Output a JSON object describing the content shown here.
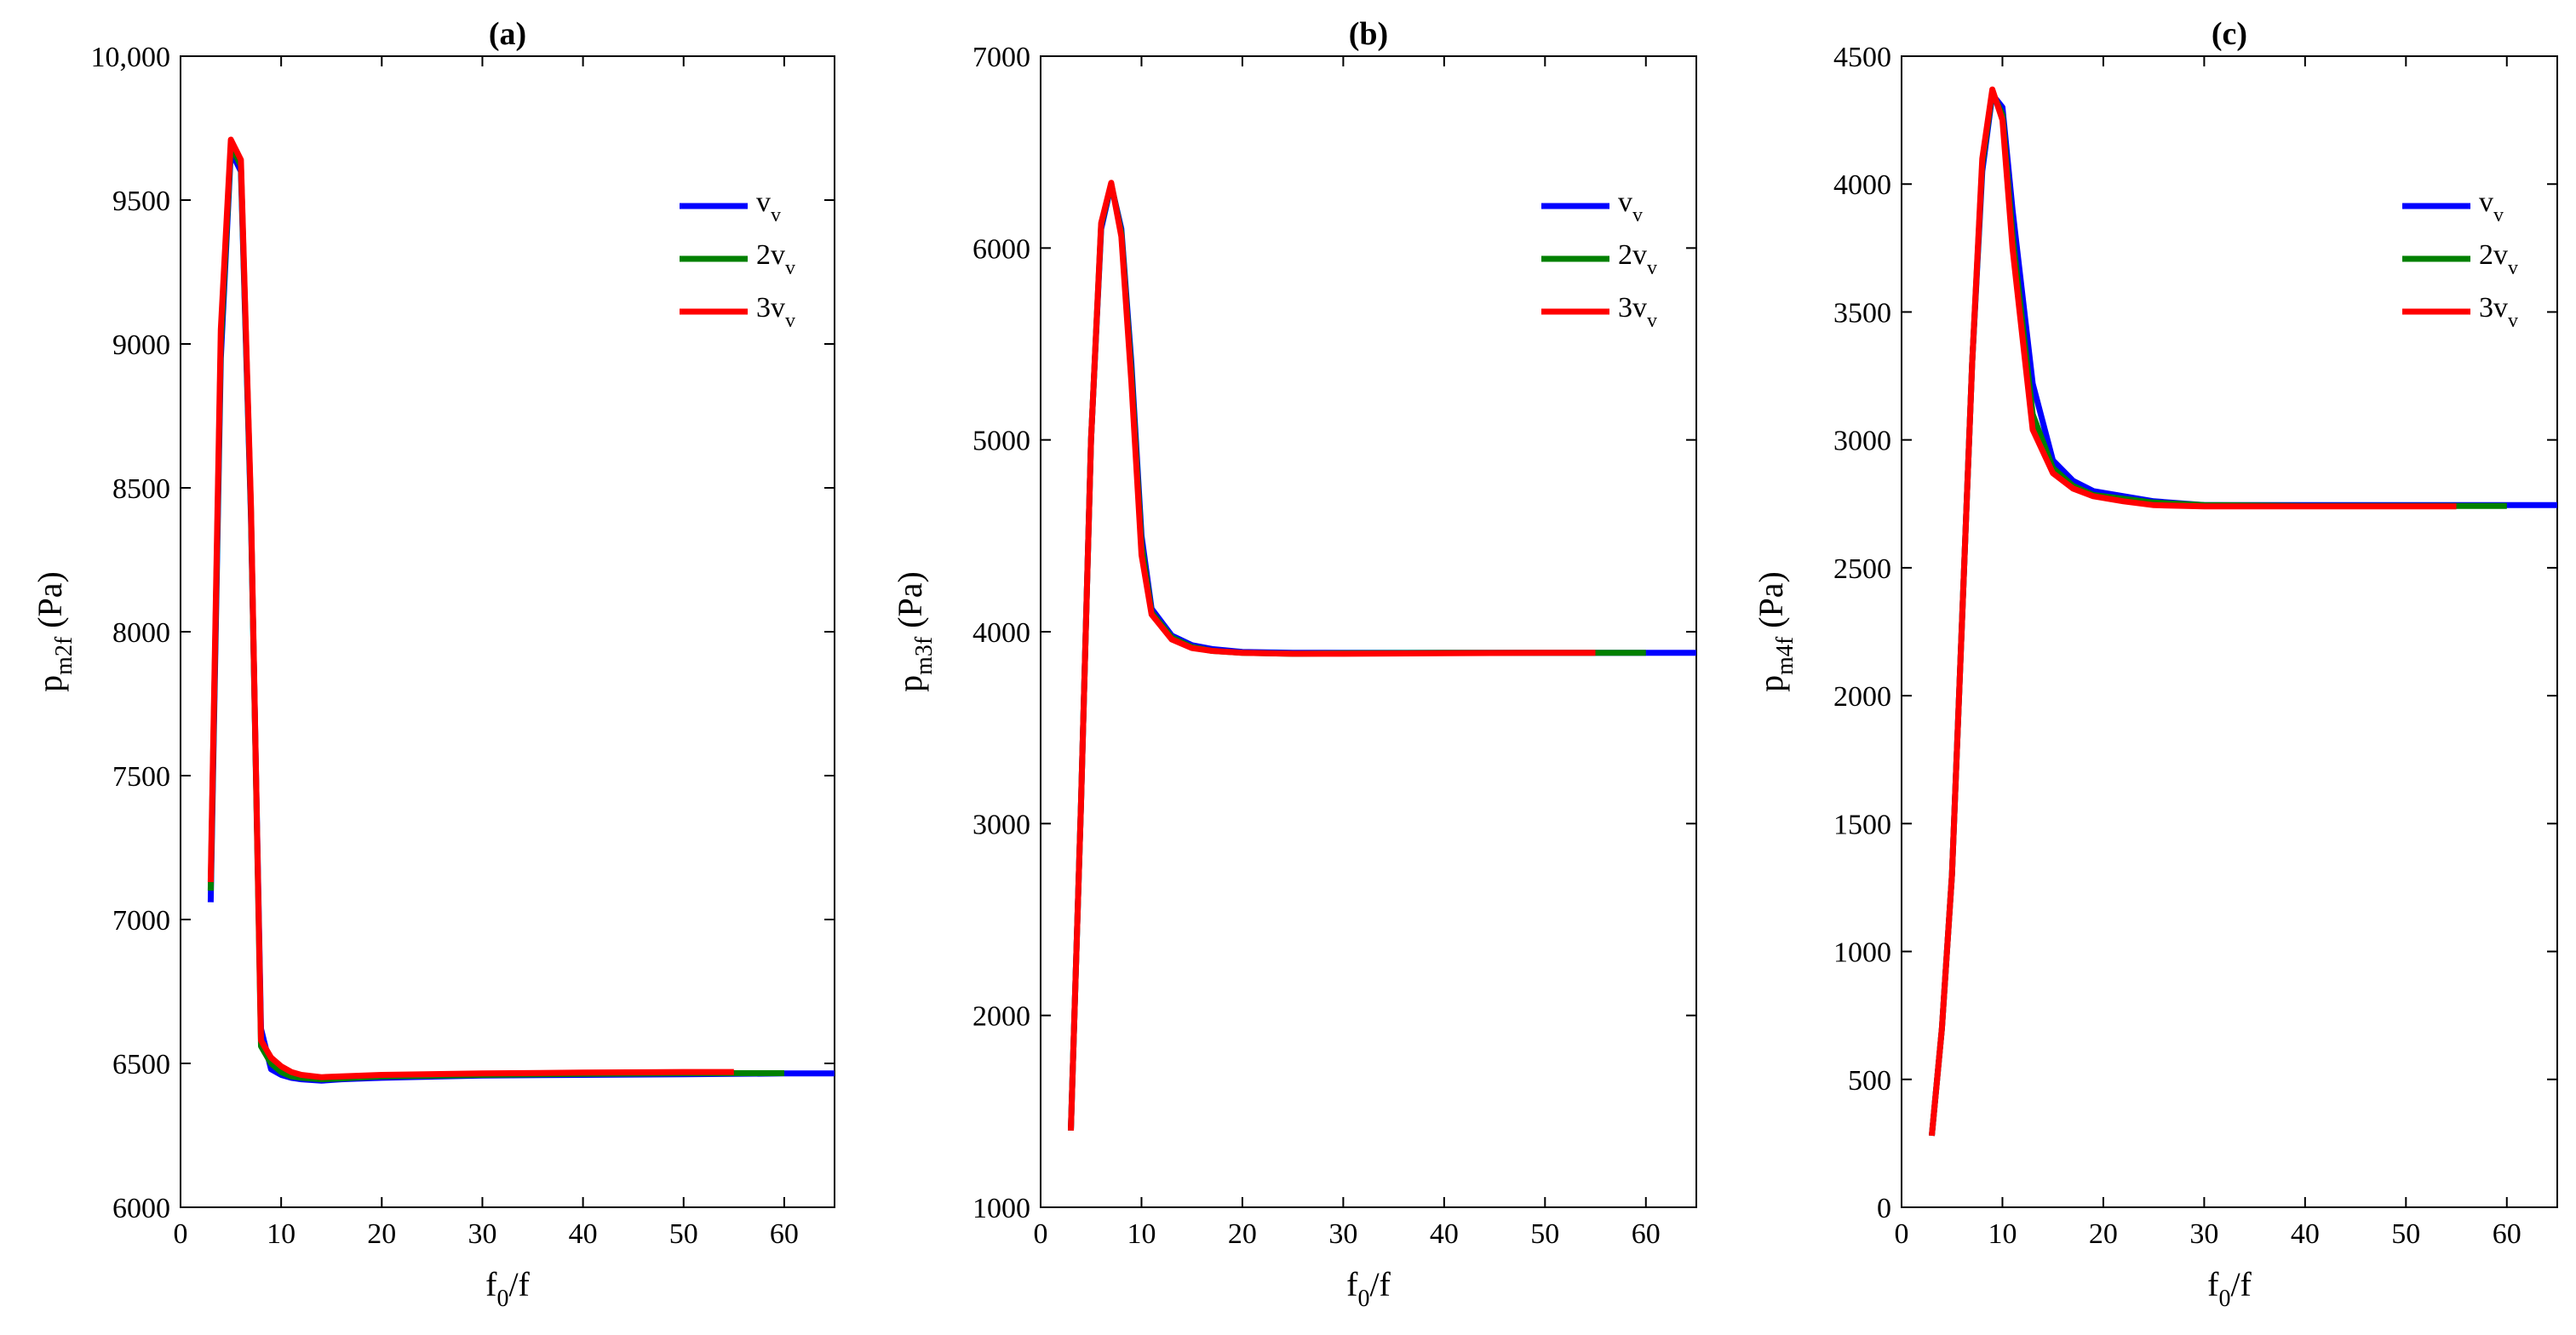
{
  "chart_data": [
    {
      "type": "line",
      "title": "(a)",
      "xlabel": {
        "base": "f",
        "sub": "0",
        "rest": "/f"
      },
      "ylabel": {
        "base": "p",
        "sub": "m2f",
        "rest": " (Pa)"
      },
      "xlim": [
        0,
        65
      ],
      "ylim": [
        6000,
        10000
      ],
      "xticks": [
        0,
        10,
        20,
        30,
        40,
        50,
        60
      ],
      "yticks": [
        6000,
        6500,
        7000,
        7500,
        8000,
        8500,
        9000,
        9500,
        10000
      ],
      "xtick_labels": [
        "0",
        "10",
        "20",
        "30",
        "40",
        "50",
        "60"
      ],
      "ytick_labels": [
        "6000",
        "6500",
        "7000",
        "7500",
        "8000",
        "8500",
        "9000",
        "9500",
        "10,000"
      ],
      "legend_position": "top-right",
      "series": [
        {
          "name": "v_v",
          "label_base": "v",
          "label_sub": "v",
          "color": "#0000ff",
          "x": [
            3,
            4,
            5,
            6,
            7,
            8,
            9,
            10,
            11,
            12,
            14,
            16,
            20,
            30,
            40,
            50,
            60,
            65
          ],
          "y": [
            7060,
            8950,
            9670,
            9600,
            8400,
            6620,
            6480,
            6460,
            6450,
            6445,
            6440,
            6445,
            6450,
            6458,
            6460,
            6462,
            6465,
            6465
          ]
        },
        {
          "name": "2v_v",
          "label_base": "2v",
          "label_sub": "v",
          "color": "#008000",
          "x": [
            3,
            4,
            5,
            6,
            7,
            8,
            9,
            10,
            11,
            12,
            14,
            16,
            20,
            30,
            40,
            50,
            60
          ],
          "y": [
            7100,
            9000,
            9690,
            9620,
            8420,
            6560,
            6500,
            6470,
            6455,
            6450,
            6445,
            6448,
            6455,
            6460,
            6464,
            6466,
            6466
          ]
        },
        {
          "name": "3v_v",
          "label_base": "3v",
          "label_sub": "v",
          "color": "#ff0000",
          "x": [
            3,
            4,
            5,
            6,
            7,
            8,
            9,
            10,
            11,
            12,
            14,
            16,
            20,
            30,
            40,
            50,
            55
          ],
          "y": [
            7130,
            9050,
            9710,
            9640,
            8440,
            6580,
            6520,
            6490,
            6470,
            6460,
            6452,
            6455,
            6460,
            6465,
            6468,
            6470,
            6470
          ]
        }
      ]
    },
    {
      "type": "line",
      "title": "(b)",
      "xlabel": {
        "base": "f",
        "sub": "0",
        "rest": "/f"
      },
      "ylabel": {
        "base": "p",
        "sub": "m3f",
        "rest": " (Pa)"
      },
      "xlim": [
        0,
        65
      ],
      "ylim": [
        1000,
        7000
      ],
      "xticks": [
        0,
        10,
        20,
        30,
        40,
        50,
        60
      ],
      "yticks": [
        1000,
        2000,
        3000,
        4000,
        5000,
        6000,
        7000
      ],
      "xtick_labels": [
        "0",
        "10",
        "20",
        "30",
        "40",
        "50",
        "60"
      ],
      "ytick_labels": [
        "1000",
        "2000",
        "3000",
        "4000",
        "5000",
        "6000",
        "7000"
      ],
      "legend_position": "top-right",
      "series": [
        {
          "name": "v_v",
          "label_base": "v",
          "label_sub": "v",
          "color": "#0000ff",
          "x": [
            3,
            4,
            5,
            6,
            7,
            8,
            9,
            10,
            11,
            13,
            15,
            17,
            20,
            25,
            30,
            40,
            50,
            60,
            65
          ],
          "y": [
            1400,
            3100,
            5000,
            6100,
            6330,
            6100,
            5400,
            4500,
            4120,
            3980,
            3930,
            3910,
            3895,
            3890,
            3890,
            3890,
            3890,
            3890,
            3890
          ]
        },
        {
          "name": "2v_v",
          "label_base": "2v",
          "label_sub": "v",
          "color": "#008000",
          "x": [
            3,
            4,
            5,
            6,
            7,
            8,
            9,
            10,
            11,
            13,
            15,
            17,
            20,
            25,
            30,
            40,
            50,
            60
          ],
          "y": [
            1400,
            3100,
            5000,
            6120,
            6335,
            6080,
            5350,
            4450,
            4100,
            3970,
            3920,
            3900,
            3890,
            3885,
            3888,
            3890,
            3890,
            3890
          ]
        },
        {
          "name": "3v_v",
          "label_base": "3v",
          "label_sub": "v",
          "color": "#ff0000",
          "x": [
            3,
            4,
            5,
            6,
            7,
            8,
            9,
            10,
            11,
            13,
            15,
            17,
            20,
            25,
            30,
            40,
            50,
            55
          ],
          "y": [
            1400,
            3100,
            5000,
            6130,
            6340,
            6060,
            5300,
            4400,
            4090,
            3960,
            3915,
            3900,
            3890,
            3885,
            3885,
            3888,
            3890,
            3890
          ]
        }
      ]
    },
    {
      "type": "line",
      "title": "(c)",
      "xlabel": {
        "base": "f",
        "sub": "0",
        "rest": "/f"
      },
      "ylabel": {
        "base": "p",
        "sub": "m4f",
        "rest": " (Pa)"
      },
      "xlim": [
        0,
        65
      ],
      "ylim": [
        0,
        4500
      ],
      "xticks": [
        0,
        10,
        20,
        30,
        40,
        50,
        60
      ],
      "yticks": [
        0,
        500,
        1000,
        1500,
        2000,
        2500,
        3000,
        3500,
        4000,
        4500
      ],
      "xtick_labels": [
        "0",
        "10",
        "20",
        "30",
        "40",
        "50",
        "60"
      ],
      "ytick_labels": [
        "0",
        "500",
        "1000",
        "1500",
        "2000",
        "2500",
        "3000",
        "3500",
        "4000",
        "4500"
      ],
      "legend_position": "top-right",
      "series": [
        {
          "name": "v_v",
          "label_base": "v",
          "label_sub": "v",
          "color": "#0000ff",
          "x": [
            3,
            4,
            5,
            6,
            7,
            8,
            9,
            10,
            11,
            13,
            15,
            17,
            19,
            22,
            25,
            30,
            40,
            50,
            60,
            65
          ],
          "y": [
            280,
            700,
            1300,
            2300,
            3300,
            4050,
            4350,
            4300,
            3900,
            3220,
            2920,
            2840,
            2800,
            2780,
            2760,
            2745,
            2745,
            2745,
            2745,
            2745
          ]
        },
        {
          "name": "2v_v",
          "label_base": "2v",
          "label_sub": "v",
          "color": "#008000",
          "x": [
            3,
            4,
            5,
            6,
            7,
            8,
            9,
            10,
            11,
            13,
            15,
            17,
            19,
            22,
            25,
            30,
            40,
            50,
            60
          ],
          "y": [
            280,
            700,
            1300,
            2300,
            3300,
            4080,
            4360,
            4270,
            3800,
            3100,
            2890,
            2820,
            2785,
            2770,
            2755,
            2745,
            2742,
            2742,
            2742
          ]
        },
        {
          "name": "3v_v",
          "label_base": "3v",
          "label_sub": "v",
          "color": "#ff0000",
          "x": [
            3,
            4,
            5,
            6,
            7,
            8,
            9,
            10,
            11,
            13,
            15,
            17,
            19,
            22,
            25,
            30,
            40,
            50,
            55
          ],
          "y": [
            280,
            700,
            1300,
            2300,
            3300,
            4100,
            4370,
            4250,
            3750,
            3040,
            2870,
            2810,
            2780,
            2760,
            2745,
            2740,
            2740,
            2740,
            2740
          ]
        }
      ]
    }
  ]
}
